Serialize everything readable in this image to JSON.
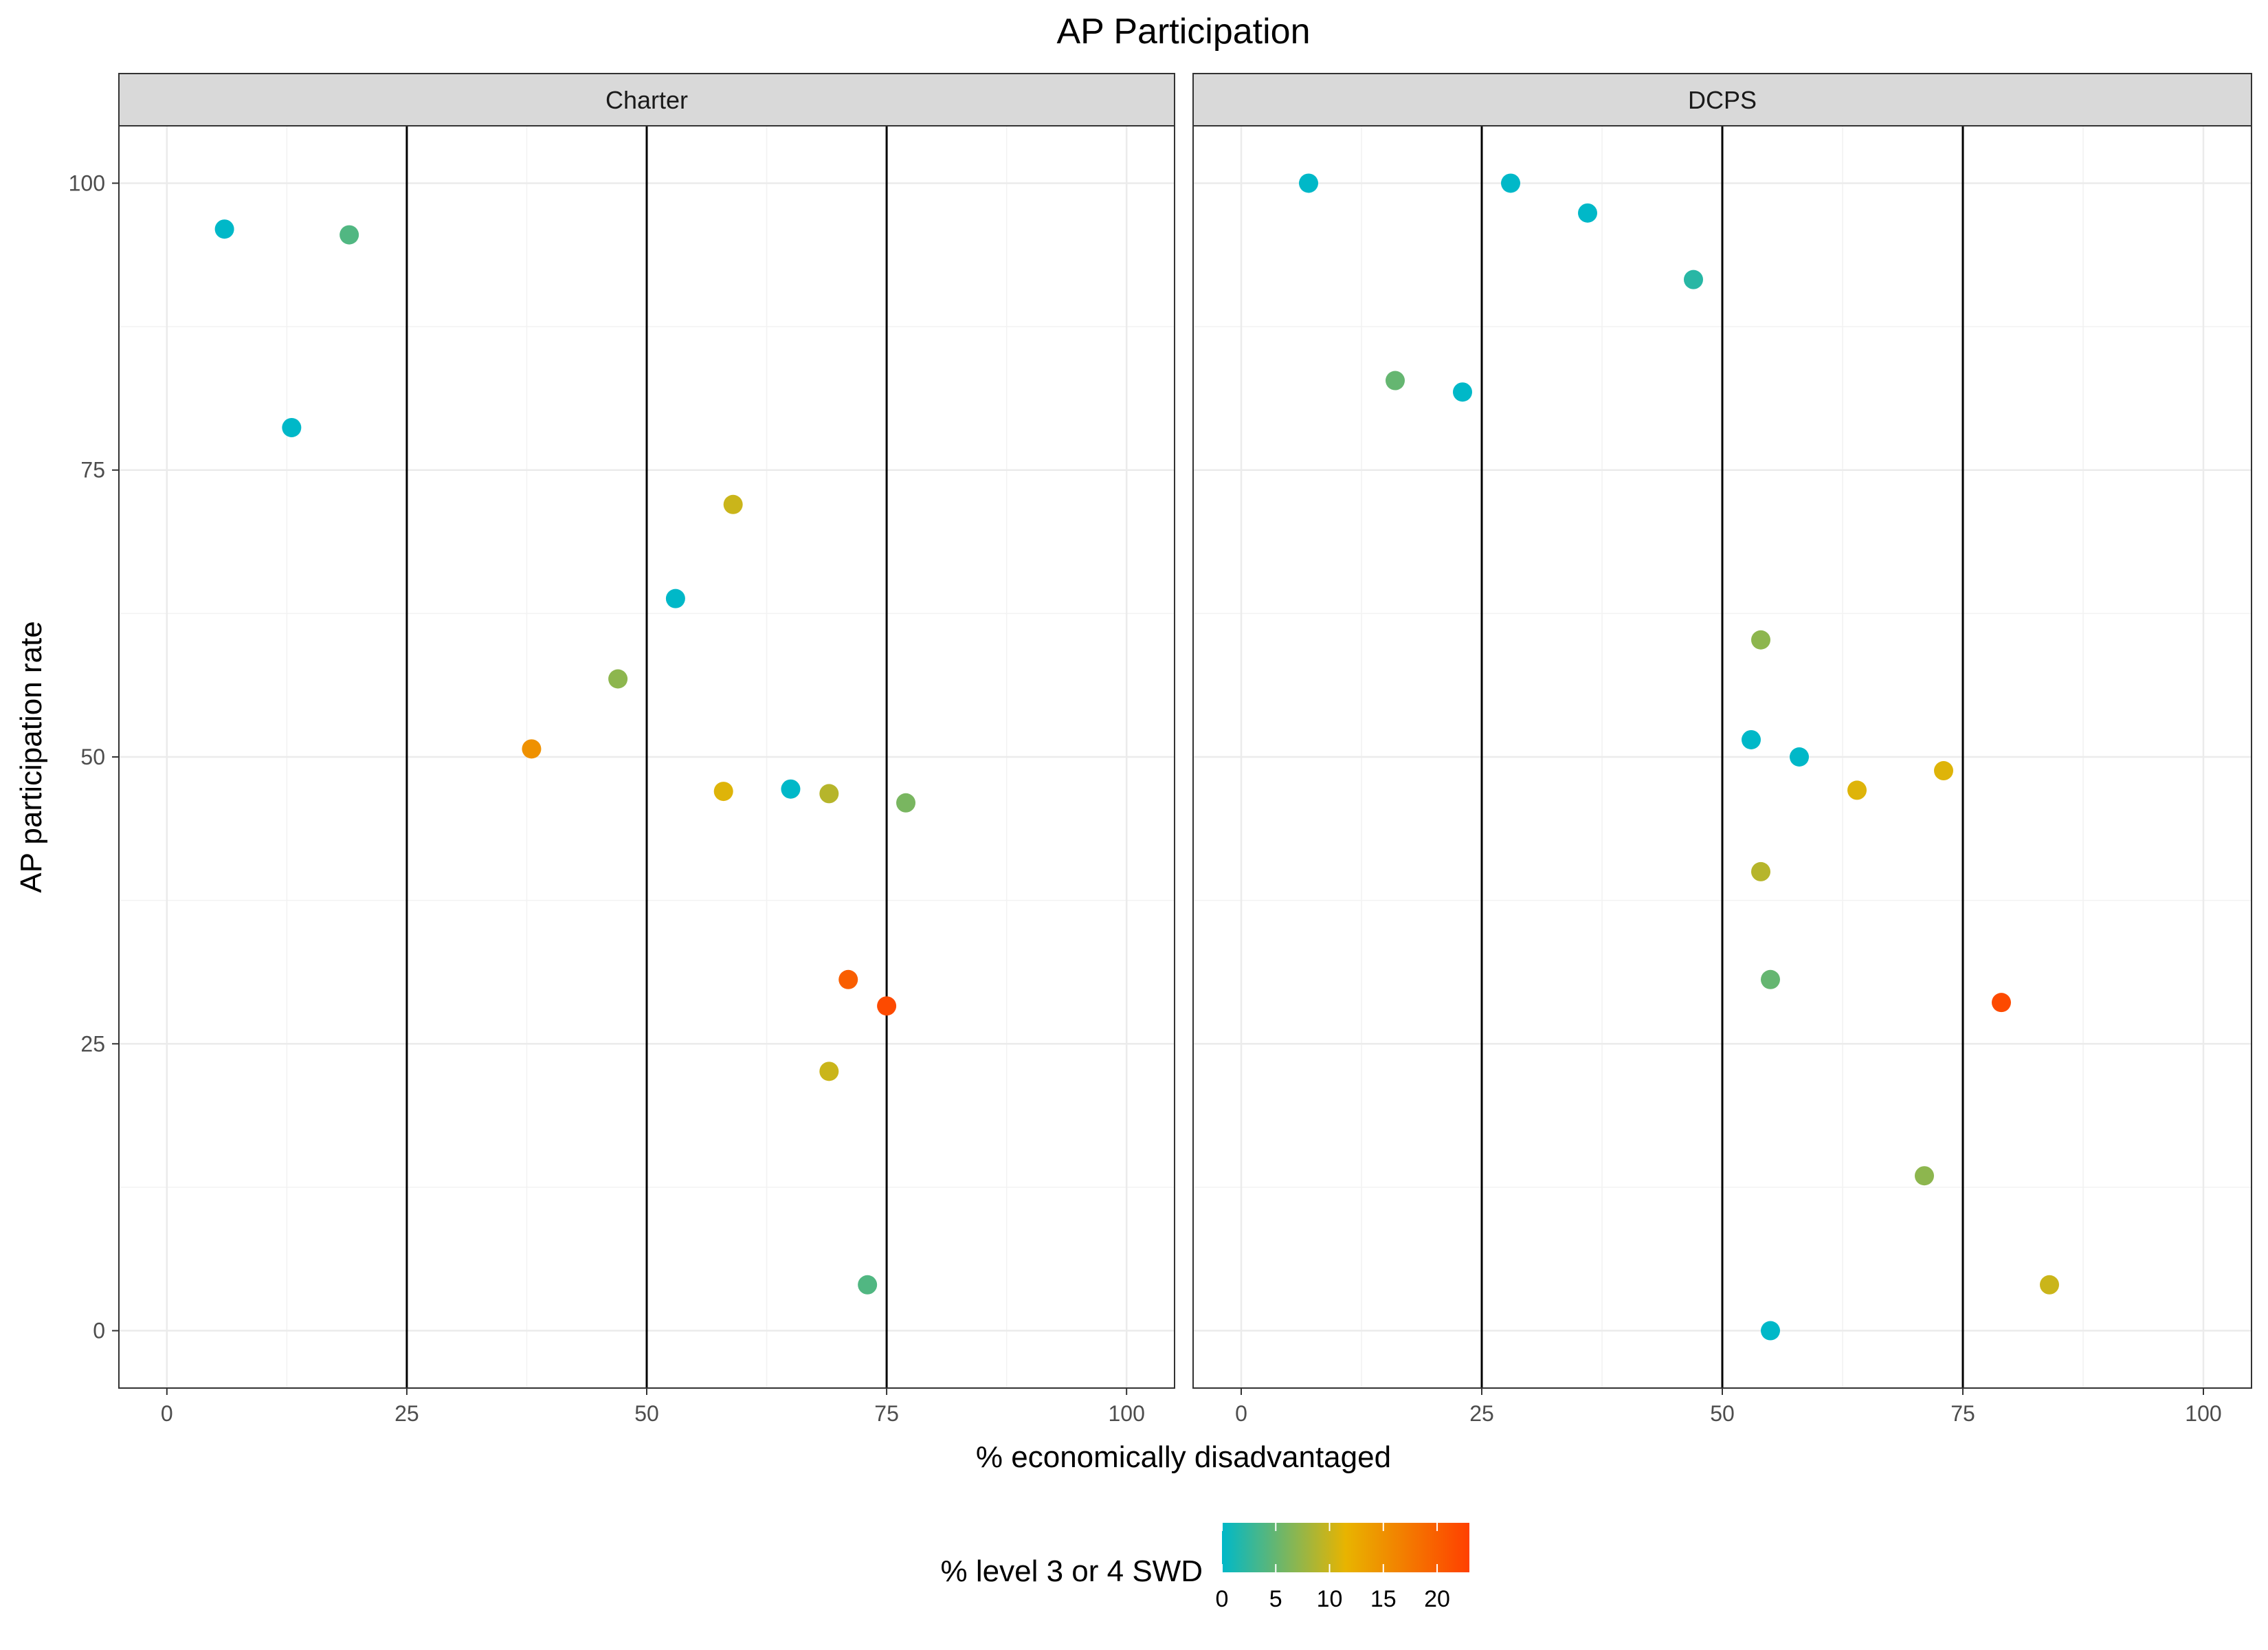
{
  "chart_data": {
    "type": "scatter",
    "title": "AP Participation",
    "xlabel": "% economically disadvantaged",
    "ylabel": "AP participation rate",
    "xlim": [
      -5,
      105
    ],
    "ylim": [
      -5,
      105
    ],
    "x_ticks": [
      "0",
      "25",
      "50",
      "75",
      "100"
    ],
    "y_ticks": [
      "0",
      "25",
      "50",
      "75",
      "100"
    ],
    "vlines": [
      25,
      50,
      75
    ],
    "grid": true,
    "color_scale": {
      "title": "% level 3 or 4 SWD",
      "min": 0,
      "max": 23,
      "ticks": [
        "0",
        "5",
        "10",
        "15",
        "20"
      ],
      "colors": [
        "#00b8c8",
        "#e8b400",
        "#ff4000"
      ],
      "position": "bottom"
    },
    "panels": [
      {
        "label": "Charter",
        "points": [
          {
            "x": 6,
            "y": 96,
            "c": 0
          },
          {
            "x": 19,
            "y": 95.5,
            "c": 4
          },
          {
            "x": 13,
            "y": 78.7,
            "c": 0
          },
          {
            "x": 59,
            "y": 72,
            "c": 10
          },
          {
            "x": 53,
            "y": 63.8,
            "c": 0
          },
          {
            "x": 47,
            "y": 56.8,
            "c": 7
          },
          {
            "x": 38,
            "y": 50.7,
            "c": 15
          },
          {
            "x": 58,
            "y": 47,
            "c": 11
          },
          {
            "x": 65,
            "y": 47.2,
            "c": 0
          },
          {
            "x": 69,
            "y": 46.8,
            "c": 9
          },
          {
            "x": 77,
            "y": 46,
            "c": 6
          },
          {
            "x": 71,
            "y": 30.6,
            "c": 20
          },
          {
            "x": 75,
            "y": 28.3,
            "c": 22
          },
          {
            "x": 69,
            "y": 22.6,
            "c": 10
          },
          {
            "x": 73,
            "y": 4,
            "c": 4
          }
        ]
      },
      {
        "label": "DCPS",
        "points": [
          {
            "x": 7,
            "y": 100,
            "c": 0
          },
          {
            "x": 28,
            "y": 100,
            "c": 0
          },
          {
            "x": 36,
            "y": 97.4,
            "c": 0
          },
          {
            "x": 47,
            "y": 91.6,
            "c": 2
          },
          {
            "x": 16,
            "y": 82.8,
            "c": 5
          },
          {
            "x": 23,
            "y": 81.8,
            "c": 0
          },
          {
            "x": 54,
            "y": 60.2,
            "c": 7
          },
          {
            "x": 53,
            "y": 51.5,
            "c": 0
          },
          {
            "x": 58,
            "y": 50,
            "c": 0
          },
          {
            "x": 64,
            "y": 47.1,
            "c": 11
          },
          {
            "x": 73,
            "y": 48.8,
            "c": 11
          },
          {
            "x": 54,
            "y": 40,
            "c": 9
          },
          {
            "x": 55,
            "y": 30.6,
            "c": 5
          },
          {
            "x": 79,
            "y": 28.6,
            "c": 22
          },
          {
            "x": 71,
            "y": 13.5,
            "c": 7
          },
          {
            "x": 84,
            "y": 4,
            "c": 10
          },
          {
            "x": 55,
            "y": 0,
            "c": 0
          }
        ]
      }
    ]
  }
}
